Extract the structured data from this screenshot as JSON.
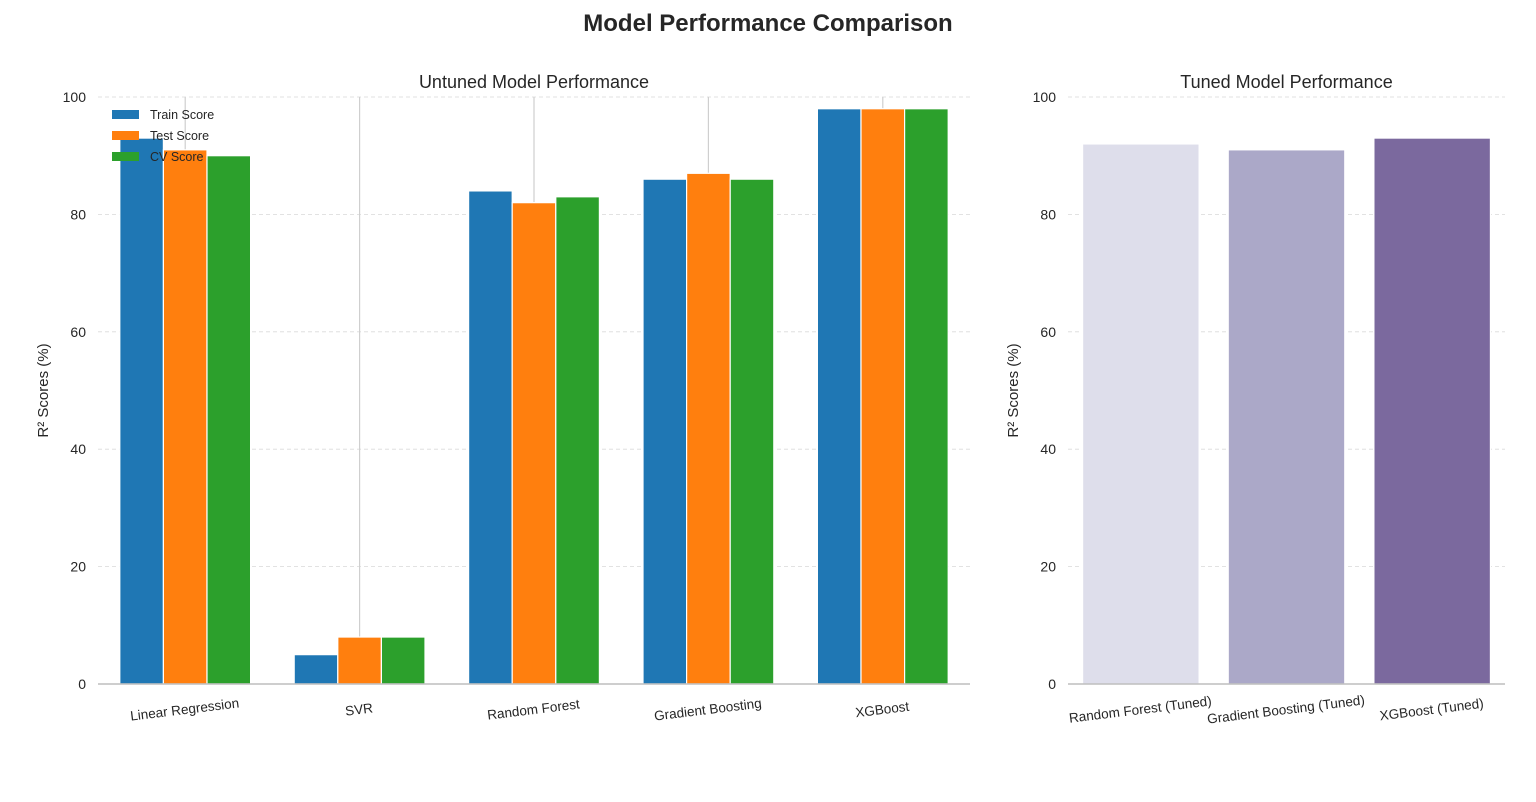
{
  "figure": {
    "title": "Model Performance Comparison"
  },
  "chart_data": [
    {
      "type": "bar",
      "title": "Untuned Model Performance",
      "xlabel": "",
      "ylabel": "R² Scores (%)",
      "ylim": [
        0,
        100
      ],
      "yticks": [
        0,
        20,
        40,
        60,
        80,
        100
      ],
      "grid": "y-dashed",
      "legend_position": "top-left",
      "categories": [
        "Linear Regression",
        "SVR",
        "Random Forest",
        "Gradient Boosting",
        "XGBoost"
      ],
      "series": [
        {
          "name": "Train Score",
          "color": "#1f77b4",
          "values": [
            93,
            5,
            84,
            86,
            98
          ]
        },
        {
          "name": "Test Score",
          "color": "#ff7f0e",
          "values": [
            91,
            8,
            82,
            87,
            98
          ]
        },
        {
          "name": "CV Score",
          "color": "#2ca02c",
          "values": [
            90,
            8,
            83,
            86,
            98
          ]
        }
      ]
    },
    {
      "type": "bar",
      "title": "Tuned Model Performance",
      "xlabel": "",
      "ylabel": "R² Scores (%)",
      "ylim": [
        0,
        100
      ],
      "yticks": [
        0,
        20,
        40,
        60,
        80,
        100
      ],
      "grid": "y-dashed",
      "categories": [
        "Random Forest (Tuned)",
        "Gradient Boosting (Tuned)",
        "XGBoost (Tuned)"
      ],
      "values": [
        92,
        91,
        93
      ],
      "colors": [
        "#dedeeb",
        "#aba8c8",
        "#7b699e"
      ]
    }
  ]
}
